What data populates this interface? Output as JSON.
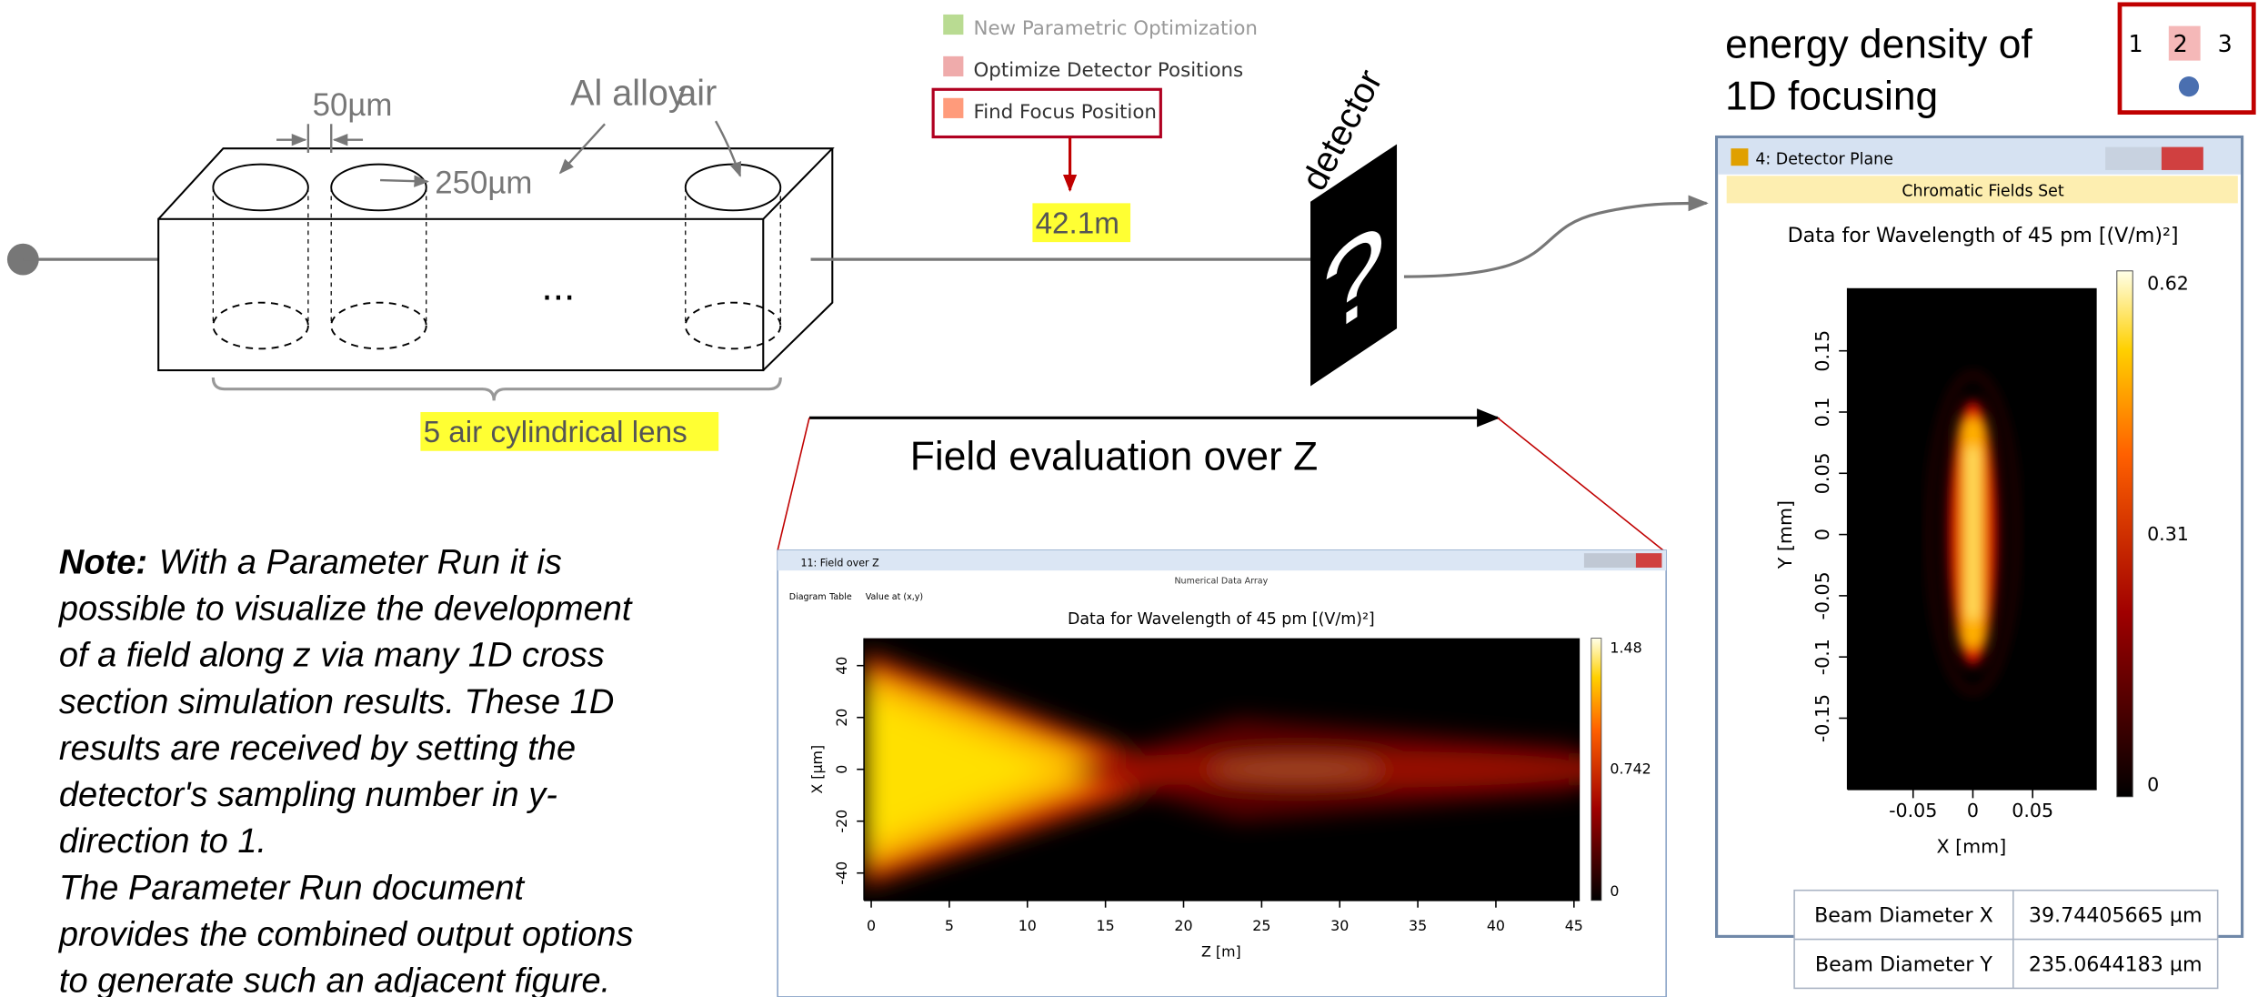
{
  "lens_diagram": {
    "gap_label": "50µm",
    "diameter_label": "250µm",
    "material_label": "Al alloy",
    "air_label": "air",
    "ellipsis": "...",
    "caption": "5 air cylindrical lens"
  },
  "menu": {
    "items": [
      "New Parametric Optimization",
      "Optimize Detector Positions",
      "Find Focus Position"
    ],
    "result": "42.1m"
  },
  "detector": {
    "label": "detector",
    "symbol": "?"
  },
  "field_arrow_label": "Field evaluation over Z",
  "note": {
    "heading": "Note:",
    "lines": [
      "With a Parameter Run it is",
      "possible to visualize the development",
      "of a field along z via many 1D cross",
      "section simulation results. These 1D",
      "results are received by setting the",
      "detector's sampling number in y-",
      "direction to 1.",
      "The Parameter Run document",
      "provides the combined output options",
      "to generate such an adjacent figure."
    ]
  },
  "field_window": {
    "title": "11: Field over Z",
    "subtitle": "Numerical Data Array",
    "tabs": [
      "Diagram",
      "Table",
      "Value at (x,y)"
    ],
    "plot_title": "Data for Wavelength of 45 pm  [(V/m)²]",
    "x_label": "Z [m]",
    "y_label": "X [µm]",
    "x_ticks": [
      0,
      5,
      10,
      15,
      20,
      25,
      30,
      35,
      40,
      45
    ],
    "y_ticks": [
      40,
      20,
      0,
      -20,
      -40
    ],
    "colorbar_ticks": [
      1.48,
      0.742,
      0
    ]
  },
  "energy_title": [
    "energy density of",
    "1D focusing"
  ],
  "layout_buttons": [
    "1",
    "2",
    "3"
  ],
  "detector_window": {
    "title": "4: Detector Plane",
    "subtitle": "Chromatic Fields Set",
    "plot_title": "Data for Wavelength of 45 pm  [(V/m)²]",
    "x_label": "X [mm]",
    "y_label": "Y [mm]",
    "x_ticks": [
      -0.05,
      0,
      0.05
    ],
    "y_ticks": [
      0.15,
      0.1,
      0.05,
      0,
      -0.05,
      -0.1,
      -0.15
    ],
    "colorbar_ticks": [
      0.62,
      0.31,
      0
    ],
    "table": [
      [
        "Beam Diameter X",
        "39.74405665 µm"
      ],
      [
        "Beam Diameter Y",
        "235.0644183 µm"
      ]
    ]
  }
}
